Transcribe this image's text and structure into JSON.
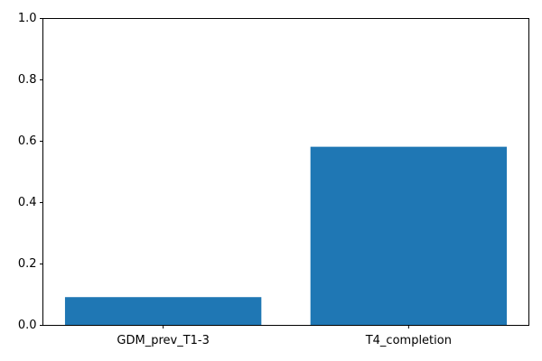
{
  "chart_data": {
    "type": "bar",
    "categories": [
      "GDM_prev_T1-3",
      "T4_completion"
    ],
    "values": [
      0.092,
      0.582
    ],
    "ylim": [
      0,
      1
    ],
    "yticks": [
      0.0,
      0.2,
      0.4,
      0.6,
      0.8,
      1.0
    ],
    "ytick_labels": [
      "0.0",
      "0.2",
      "0.4",
      "0.6",
      "0.8",
      "1.0"
    ],
    "title": "",
    "xlabel": "",
    "ylabel": "",
    "grid": false,
    "bar_color": "#1f77b4"
  }
}
